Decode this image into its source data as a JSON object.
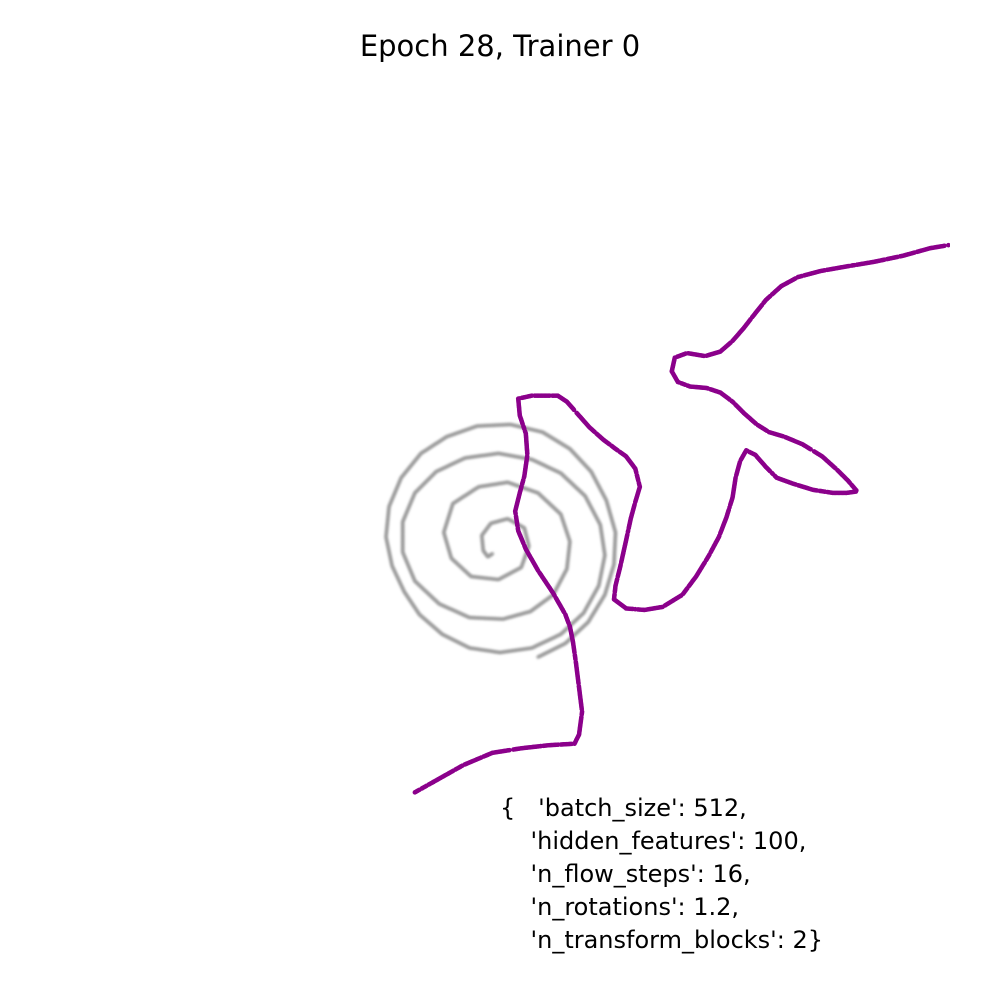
{
  "chart_data": {
    "type": "scatter",
    "title": "Epoch 28, Trainer 0",
    "axes_visible": false,
    "grid": false,
    "annotation_lines": [
      "{   'batch_size': 512,",
      "    'hidden_features': 100,",
      "    'n_flow_steps': 16,",
      "    'n_rotations': 1.2,",
      "    'n_transform_blocks': 2}"
    ],
    "series": [
      {
        "role": "target spiral samples",
        "color": "#9a9a9a",
        "points": [
          [
            -0.1,
            -0.22
          ],
          [
            -0.16,
            -0.26
          ],
          [
            -0.22,
            -0.18
          ],
          [
            -0.24,
            0.02
          ],
          [
            -0.12,
            0.18
          ],
          [
            0.1,
            0.24
          ],
          [
            0.32,
            0.12
          ],
          [
            0.38,
            -0.12
          ],
          [
            0.28,
            -0.4
          ],
          [
            -0.02,
            -0.56
          ],
          [
            -0.38,
            -0.52
          ],
          [
            -0.64,
            -0.28
          ],
          [
            -0.74,
            0.06
          ],
          [
            -0.62,
            0.44
          ],
          [
            -0.28,
            0.66
          ],
          [
            0.1,
            0.72
          ],
          [
            0.5,
            0.58
          ],
          [
            0.8,
            0.3
          ],
          [
            0.92,
            -0.06
          ],
          [
            0.88,
            -0.42
          ],
          [
            0.7,
            -0.76
          ],
          [
            0.4,
            -0.98
          ],
          [
            0.04,
            -1.08
          ],
          [
            -0.4,
            -1.06
          ],
          [
            -0.8,
            -0.88
          ],
          [
            -1.12,
            -0.58
          ],
          [
            -1.28,
            -0.2
          ],
          [
            -1.28,
            0.2
          ],
          [
            -1.12,
            0.58
          ],
          [
            -0.84,
            0.86
          ],
          [
            -0.46,
            1.04
          ],
          [
            -0.02,
            1.1
          ],
          [
            0.42,
            1.02
          ],
          [
            0.8,
            0.84
          ],
          [
            1.12,
            0.54
          ],
          [
            1.32,
            0.16
          ],
          [
            1.38,
            -0.24
          ],
          [
            1.3,
            -0.64
          ],
          [
            1.1,
            -1.0
          ],
          [
            0.8,
            -1.28
          ],
          [
            0.42,
            -1.46
          ],
          [
            0.0,
            -1.52
          ],
          [
            -0.4,
            -1.46
          ],
          [
            -0.76,
            -1.28
          ],
          [
            -1.06,
            -1.02
          ],
          [
            -1.26,
            -0.72
          ],
          [
            -1.42,
            -0.38
          ],
          [
            -1.5,
            0.0
          ],
          [
            -1.46,
            0.4
          ],
          [
            -1.3,
            0.78
          ],
          [
            -1.04,
            1.1
          ],
          [
            -0.7,
            1.32
          ],
          [
            -0.3,
            1.46
          ],
          [
            0.14,
            1.48
          ],
          [
            0.56,
            1.38
          ],
          [
            0.92,
            1.16
          ],
          [
            1.2,
            0.86
          ],
          [
            1.4,
            0.48
          ],
          [
            1.52,
            0.06
          ],
          [
            1.5,
            -0.36
          ],
          [
            1.38,
            -0.76
          ],
          [
            1.16,
            -1.12
          ],
          [
            0.86,
            -1.4
          ],
          [
            0.5,
            -1.58
          ]
        ]
      },
      {
        "role": "flow samples",
        "color": "#8b008b",
        "points": [
          [
            -1.12,
            -3.36
          ],
          [
            -0.8,
            -3.18
          ],
          [
            -0.48,
            -3.0
          ],
          [
            -0.1,
            -2.84
          ],
          [
            0.28,
            -2.78
          ],
          [
            0.64,
            -2.74
          ],
          [
            0.98,
            -2.72
          ],
          [
            1.04,
            -2.6
          ],
          [
            1.08,
            -2.3
          ],
          [
            1.04,
            -1.98
          ],
          [
            1.0,
            -1.66
          ],
          [
            0.96,
            -1.38
          ],
          [
            0.92,
            -1.18
          ],
          [
            0.86,
            -1.02
          ],
          [
            0.7,
            -0.74
          ],
          [
            0.5,
            -0.44
          ],
          [
            0.34,
            -0.16
          ],
          [
            0.24,
            0.08
          ],
          [
            0.2,
            0.34
          ],
          [
            0.26,
            0.58
          ],
          [
            0.32,
            0.8
          ],
          [
            0.36,
            1.08
          ],
          [
            0.34,
            1.36
          ],
          [
            0.26,
            1.6
          ],
          [
            0.24,
            1.82
          ],
          [
            0.42,
            1.86
          ],
          [
            0.6,
            1.86
          ],
          [
            0.76,
            1.86
          ],
          [
            0.88,
            1.78
          ],
          [
            1.02,
            1.62
          ],
          [
            1.18,
            1.44
          ],
          [
            1.36,
            1.28
          ],
          [
            1.52,
            1.16
          ],
          [
            1.66,
            1.06
          ],
          [
            1.78,
            0.9
          ],
          [
            1.84,
            0.66
          ],
          [
            1.78,
            0.46
          ],
          [
            1.72,
            0.24
          ],
          [
            1.66,
            -0.04
          ],
          [
            1.58,
            -0.4
          ],
          [
            1.52,
            -0.64
          ],
          [
            1.5,
            -0.82
          ],
          [
            1.66,
            -0.94
          ],
          [
            1.9,
            -0.96
          ],
          [
            2.14,
            -0.92
          ],
          [
            2.4,
            -0.76
          ],
          [
            2.58,
            -0.52
          ],
          [
            2.74,
            -0.26
          ],
          [
            2.88,
            0.0
          ],
          [
            2.98,
            0.26
          ],
          [
            3.06,
            0.52
          ],
          [
            3.1,
            0.78
          ],
          [
            3.16,
            1.0
          ],
          [
            3.24,
            1.14
          ],
          [
            3.36,
            1.08
          ],
          [
            3.5,
            0.92
          ],
          [
            3.64,
            0.78
          ],
          [
            3.86,
            0.7
          ],
          [
            4.12,
            0.62
          ],
          [
            4.38,
            0.58
          ],
          [
            4.56,
            0.58
          ],
          [
            4.7,
            0.6
          ],
          [
            4.58,
            0.74
          ],
          [
            4.44,
            0.88
          ],
          [
            4.24,
            1.06
          ],
          [
            3.98,
            1.22
          ],
          [
            3.74,
            1.32
          ],
          [
            3.54,
            1.38
          ],
          [
            3.38,
            1.48
          ],
          [
            3.22,
            1.62
          ],
          [
            3.06,
            1.78
          ],
          [
            2.9,
            1.9
          ],
          [
            2.72,
            1.96
          ],
          [
            2.5,
            1.98
          ],
          [
            2.34,
            2.04
          ],
          [
            2.26,
            2.18
          ],
          [
            2.3,
            2.36
          ],
          [
            2.46,
            2.42
          ],
          [
            2.7,
            2.38
          ],
          [
            2.9,
            2.44
          ],
          [
            3.06,
            2.58
          ],
          [
            3.2,
            2.74
          ],
          [
            3.34,
            2.92
          ],
          [
            3.5,
            3.12
          ],
          [
            3.7,
            3.3
          ],
          [
            3.92,
            3.42
          ],
          [
            4.22,
            3.5
          ],
          [
            4.56,
            3.56
          ],
          [
            4.92,
            3.62
          ],
          [
            5.3,
            3.7
          ],
          [
            5.66,
            3.8
          ],
          [
            5.9,
            3.84
          ]
        ]
      }
    ]
  }
}
